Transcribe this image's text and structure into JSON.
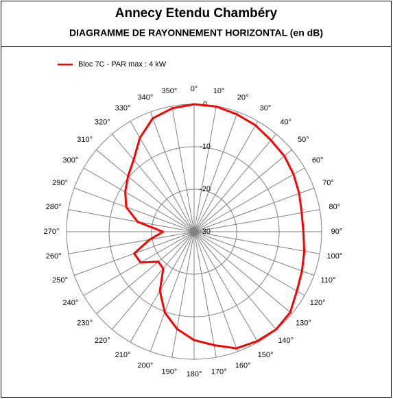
{
  "chart_data": {
    "type": "polar",
    "title": "Annecy Etendu Chambéry",
    "subtitle": "DIAGRAMME DE RAYONNEMENT HORIZONTAL  (en dB)",
    "theta": [
      0,
      10,
      20,
      30,
      40,
      50,
      60,
      70,
      80,
      90,
      100,
      110,
      120,
      130,
      140,
      150,
      160,
      170,
      180,
      190,
      200,
      210,
      220,
      230,
      240,
      250,
      260,
      270,
      280,
      290,
      300,
      310,
      320,
      330,
      340,
      350
    ],
    "series": [
      {
        "name": "Bloc 7C - PAR max : 4 kW",
        "color": "#ff0000",
        "values": [
          0,
          -0.1,
          -0.6,
          -1.1,
          -1.9,
          -2.3,
          -3,
          -3.7,
          -4.3,
          -4.3,
          -3.7,
          -3,
          -2.1,
          -0.5,
          0,
          -0.3,
          -0.8,
          -2.9,
          -4.5,
          -6.8,
          -9.8,
          -13.9,
          -18.7,
          -19,
          -15.5,
          -15,
          -19.4,
          -22.7,
          -16.5,
          -13,
          -11.3,
          -9.7,
          -7.9,
          -4.5,
          -1.6,
          -0.5
        ]
      }
    ],
    "rlim": [
      -30,
      0
    ],
    "rticks": [
      0,
      -10,
      -20,
      -30
    ],
    "thetaticks": [
      {
        "value": 0,
        "label": "0°"
      },
      {
        "value": 10,
        "label": "10°"
      },
      {
        "value": 20,
        "label": "20°"
      },
      {
        "value": 30,
        "label": "30°"
      },
      {
        "value": 40,
        "label": "40°"
      },
      {
        "value": 50,
        "label": "50°"
      },
      {
        "value": 60,
        "label": "60°"
      },
      {
        "value": 70,
        "label": "70°"
      },
      {
        "value": 80,
        "label": "80°"
      },
      {
        "value": 90,
        "label": "90°"
      },
      {
        "value": 100,
        "label": "100°"
      },
      {
        "value": 110,
        "label": "110°"
      },
      {
        "value": 120,
        "label": "120°"
      },
      {
        "value": 130,
        "label": "130°"
      },
      {
        "value": 140,
        "label": "140°"
      },
      {
        "value": 150,
        "label": "150°"
      },
      {
        "value": 160,
        "label": "160°"
      },
      {
        "value": 170,
        "label": "170°"
      },
      {
        "value": 180,
        "label": "180°"
      },
      {
        "value": 190,
        "label": "190°"
      },
      {
        "value": 200,
        "label": "200°"
      },
      {
        "value": 210,
        "label": "210°"
      },
      {
        "value": 220,
        "label": "220°"
      },
      {
        "value": 230,
        "label": "230°"
      },
      {
        "value": 240,
        "label": "240°"
      },
      {
        "value": 250,
        "label": "250°"
      },
      {
        "value": 260,
        "label": "260°"
      },
      {
        "value": 270,
        "label": "270°"
      },
      {
        "value": 280,
        "label": "280°"
      },
      {
        "value": 290,
        "label": "290°"
      },
      {
        "value": 300,
        "label": "300°"
      },
      {
        "value": 310,
        "label": "310°"
      },
      {
        "value": 320,
        "label": "320°"
      },
      {
        "value": 330,
        "label": "330°"
      },
      {
        "value": 340,
        "label": "340°"
      },
      {
        "value": 350,
        "label": "350°"
      }
    ],
    "grid": true
  }
}
